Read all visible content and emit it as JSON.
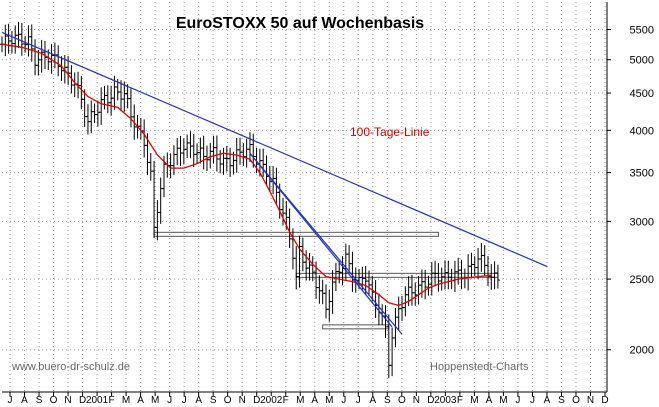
{
  "chart_data": {
    "type": "candlestick",
    "title": "EuroSTOXX 50 auf Wochenbasis",
    "annotation": "100-Tage-Linie",
    "watermark_left": "www.buero-dr-schulz.de",
    "watermark_right": "Hoppenstedt-Charts",
    "y_scale": "log",
    "ylim": [
      1750,
      6000
    ],
    "y_ticks": [
      2000,
      2500,
      3000,
      3500,
      4000,
      4500,
      5000,
      5500
    ],
    "x_ticks": [
      "J",
      "A",
      "S",
      "O",
      "N",
      "D",
      "2001",
      "F",
      "M",
      "A",
      "M",
      "J",
      "J",
      "A",
      "S",
      "O",
      "N",
      "D",
      "2002",
      "F",
      "M",
      "A",
      "M",
      "J",
      "J",
      "A",
      "S",
      "O",
      "N",
      "D",
      "2003",
      "F",
      "M",
      "A",
      "M",
      "J",
      "J",
      "A",
      "S",
      "O",
      "N",
      "D"
    ],
    "x_range_weeks": [
      0,
      183
    ],
    "grid": true,
    "colors": {
      "candles": "#000000",
      "ma_line": "#dd0000",
      "trendlines": "#2233bb",
      "support": "#555555",
      "title": "#000000",
      "annotation": "#cc0000",
      "watermark": "#666666"
    },
    "price_path": [
      [
        0,
        5250
      ],
      [
        4,
        5300
      ],
      [
        8,
        5350
      ],
      [
        10,
        5050
      ],
      [
        14,
        5000
      ],
      [
        18,
        4900
      ],
      [
        22,
        4700
      ],
      [
        24,
        4400
      ],
      [
        26,
        4050
      ],
      [
        28,
        4200
      ],
      [
        31,
        4450
      ],
      [
        34,
        4550
      ],
      [
        37,
        4450
      ],
      [
        39,
        4150
      ],
      [
        41,
        4000
      ],
      [
        43,
        3900
      ],
      [
        45,
        3500
      ],
      [
        46,
        2950
      ],
      [
        47,
        3150
      ],
      [
        49,
        3500
      ],
      [
        52,
        3650
      ],
      [
        55,
        3850
      ],
      [
        58,
        3800
      ],
      [
        61,
        3650
      ],
      [
        64,
        3700
      ],
      [
        67,
        3650
      ],
      [
        71,
        3700
      ],
      [
        75,
        3720
      ],
      [
        77,
        3650
      ],
      [
        80,
        3550
      ],
      [
        82,
        3400
      ],
      [
        84,
        3150
      ],
      [
        86,
        2950
      ],
      [
        88,
        2700
      ],
      [
        89,
        2500
      ],
      [
        90,
        2750
      ],
      [
        92,
        2650
      ],
      [
        94,
        2550
      ],
      [
        96,
        2400
      ],
      [
        98,
        2250
      ],
      [
        100,
        2450
      ],
      [
        102,
        2600
      ],
      [
        104,
        2700
      ],
      [
        106,
        2550
      ],
      [
        108,
        2450
      ],
      [
        110,
        2500
      ],
      [
        112,
        2350
      ],
      [
        114,
        2300
      ],
      [
        116,
        2150
      ],
      [
        117,
        1950
      ],
      [
        118,
        2100
      ],
      [
        120,
        2250
      ],
      [
        122,
        2350
      ],
      [
        124,
        2400
      ],
      [
        126,
        2450
      ],
      [
        128,
        2500
      ],
      [
        131,
        2520
      ],
      [
        134,
        2480
      ],
      [
        137,
        2550
      ],
      [
        140,
        2570
      ],
      [
        142,
        2600
      ],
      [
        144,
        2650
      ],
      [
        147,
        2550
      ],
      [
        148,
        2500
      ],
      [
        150,
        2540
      ]
    ],
    "ma_line": [
      [
        0,
        5250
      ],
      [
        6,
        5200
      ],
      [
        12,
        5100
      ],
      [
        18,
        4900
      ],
      [
        22,
        4650
      ],
      [
        26,
        4450
      ],
      [
        30,
        4350
      ],
      [
        35,
        4300
      ],
      [
        39,
        4150
      ],
      [
        43,
        3950
      ],
      [
        47,
        3700
      ],
      [
        51,
        3550
      ],
      [
        55,
        3550
      ],
      [
        59,
        3600
      ],
      [
        63,
        3680
      ],
      [
        67,
        3720
      ],
      [
        71,
        3700
      ],
      [
        75,
        3650
      ],
      [
        78,
        3500
      ],
      [
        81,
        3300
      ],
      [
        84,
        3100
      ],
      [
        87,
        2900
      ],
      [
        90,
        2750
      ],
      [
        94,
        2620
      ],
      [
        98,
        2520
      ],
      [
        102,
        2500
      ],
      [
        106,
        2480
      ],
      [
        110,
        2450
      ],
      [
        114,
        2380
      ],
      [
        117,
        2320
      ],
      [
        120,
        2300
      ],
      [
        123,
        2330
      ],
      [
        126,
        2380
      ],
      [
        129,
        2430
      ],
      [
        132,
        2460
      ],
      [
        135,
        2480
      ],
      [
        138,
        2500
      ],
      [
        141,
        2510
      ],
      [
        144,
        2520
      ],
      [
        148,
        2530
      ]
    ],
    "trendlines": [
      {
        "from": [
          0,
          5450
        ],
        "to": [
          165,
          2600
        ]
      },
      {
        "from": [
          75,
          3720
        ],
        "to": [
          118,
          2150
        ]
      },
      {
        "from": [
          75,
          3720
        ],
        "to": [
          121,
          2100
        ]
      }
    ],
    "support_lines": [
      {
        "from": [
          46,
          2880
        ],
        "to": [
          132,
          2880
        ]
      },
      {
        "from": [
          89,
          2530
        ],
        "to": [
          150,
          2530
        ]
      },
      {
        "from": [
          97,
          2150
        ],
        "to": [
          117,
          2150
        ]
      }
    ]
  }
}
